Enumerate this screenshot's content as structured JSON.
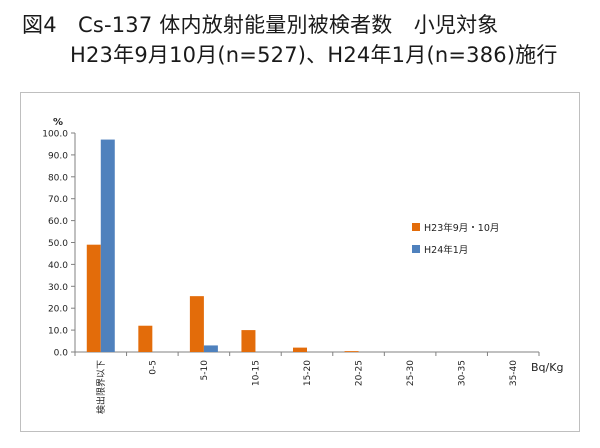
{
  "title": {
    "line1": "図4　Cs-137 体内放射能量別被検者数　小児対象",
    "line2": "H23年9月10月(n=527)、H24年1月(n=386)施行"
  },
  "chart_data": {
    "type": "bar",
    "ylabel": "%",
    "xlabel": "Bq/Kg",
    "ylim": [
      0,
      100
    ],
    "yticks": [
      "0.0",
      "10.0",
      "20.0",
      "30.0",
      "40.0",
      "50.0",
      "60.0",
      "70.0",
      "80.0",
      "90.0",
      "100.0"
    ],
    "categories": [
      "検出限界以下",
      "0-5",
      "5-10",
      "10-15",
      "15-20",
      "20-25",
      "25-30",
      "30-35",
      "35-40"
    ],
    "series": [
      {
        "name": "H23年9月・10月",
        "color": "#e36c0a",
        "values": [
          49.0,
          12.0,
          25.5,
          10.0,
          2.0,
          0.4,
          0.0,
          0.0,
          0.0
        ]
      },
      {
        "name": "H24年1月",
        "color": "#4f81bd",
        "values": [
          97.0,
          0.0,
          3.0,
          0.0,
          0.0,
          0.0,
          0.0,
          0.0,
          0.0
        ]
      }
    ],
    "grid": false,
    "legend_position": "right"
  }
}
